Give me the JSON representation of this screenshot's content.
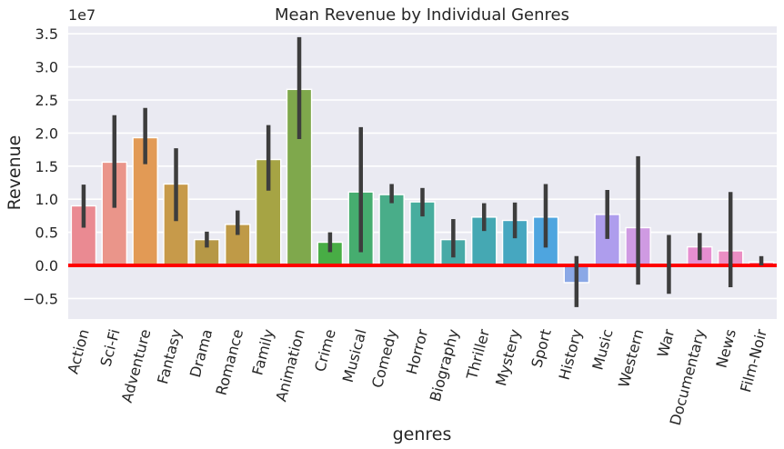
{
  "chart_data": {
    "type": "bar",
    "title": "Mean Revenue by Individual Genres",
    "xlabel": "genres",
    "ylabel": "Revenue",
    "y_scale_label": "1e7",
    "y_scale": 10000000,
    "ylim": [
      -0.85,
      3.6
    ],
    "yticks": [
      -0.5,
      0.0,
      0.5,
      1.0,
      1.5,
      2.0,
      2.5,
      3.0,
      3.5
    ],
    "ytick_labels": [
      "−0.5",
      "0.0",
      "0.5",
      "1.0",
      "1.5",
      "2.0",
      "2.5",
      "3.0",
      "3.5"
    ],
    "grid": true,
    "reference_line": {
      "y": 0,
      "color": "#ff0000"
    },
    "categories": [
      "Action",
      "Sci-Fi",
      "Adventure",
      "Fantasy",
      "Drama",
      "Romance",
      "Family",
      "Animation",
      "Crime",
      "Musical",
      "Comedy",
      "Horror",
      "Biography",
      "Thriller",
      "Mystery",
      "Sport",
      "History",
      "Music",
      "Western",
      "War",
      "Documentary",
      "News",
      "Film-Noir"
    ],
    "values": [
      0.9,
      1.56,
      1.93,
      1.23,
      0.39,
      0.62,
      1.6,
      2.66,
      0.35,
      1.11,
      1.07,
      0.96,
      0.39,
      0.73,
      0.68,
      0.73,
      -0.26,
      0.77,
      0.57,
      0.0,
      0.28,
      0.22,
      0.05
    ],
    "ci_low": [
      0.57,
      0.87,
      1.53,
      0.67,
      0.27,
      0.46,
      1.13,
      1.91,
      0.2,
      0.2,
      0.94,
      0.74,
      0.12,
      0.52,
      0.41,
      0.27,
      -0.63,
      0.4,
      -0.29,
      -0.43,
      0.08,
      -0.33,
      0.0
    ],
    "ci_high": [
      1.22,
      2.27,
      2.38,
      1.77,
      0.51,
      0.83,
      2.12,
      3.45,
      0.5,
      2.09,
      1.23,
      1.17,
      0.7,
      0.94,
      0.95,
      1.23,
      0.14,
      1.14,
      1.65,
      0.46,
      0.49,
      1.11,
      0.14
    ],
    "colors": [
      "#ea8a92",
      "#ea958a",
      "#e29a55",
      "#c79a4a",
      "#b69846",
      "#bf9a47",
      "#a6a444",
      "#7fa84c",
      "#48ad45",
      "#46ad6f",
      "#49ad89",
      "#47ad9e",
      "#48aaa7",
      "#45a8b3",
      "#46a7c0",
      "#4ea5df",
      "#8aa8e6",
      "#ae9ded",
      "#cf9ae2",
      "#de97d9",
      "#e68ed0",
      "#eb8ec3",
      "#ea8daa"
    ]
  }
}
